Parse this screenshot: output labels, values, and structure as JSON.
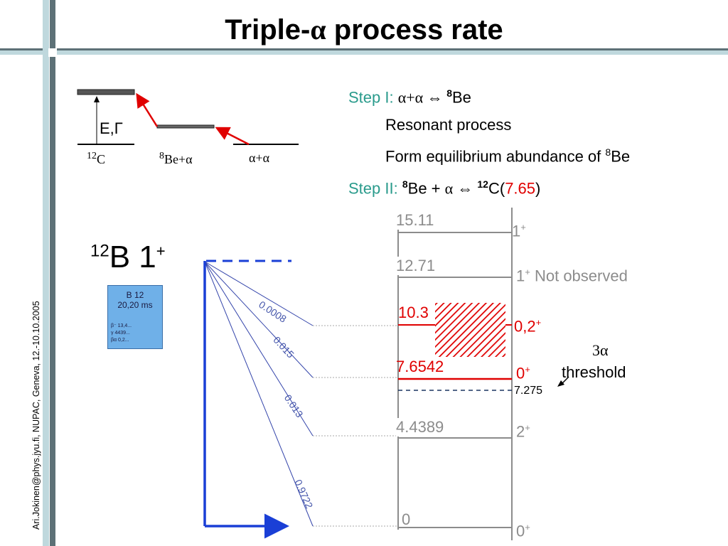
{
  "title_prefix": "Triple-",
  "title_alpha": "α",
  "title_suffix": " process rate",
  "footer_text": "Ari.Jokinen@phys.jyu.fi, NUPAC, Geneva, 12.-10.10.2005",
  "inset": {
    "e_gamma": "E,Γ",
    "c12": "C",
    "c12_mass": "12",
    "be8_mass": "8",
    "be8_alpha": "Be+α",
    "alpha_alpha": "α+α"
  },
  "steps": {
    "step1_label": "Step I:",
    "step1_text": "α+α  ⇔ ",
    "step1_mass": "8",
    "step1_be": "Be",
    "resonant": "Resonant process",
    "form_eq": "Form equilibrium abundance of ",
    "form_mass": "8",
    "form_be": "Be",
    "step2_label": "Step II:",
    "step2_mass": "8",
    "step2_be": "Be + ",
    "step2_alpha": "α",
    "step2_arrow": " ⇔ ",
    "step2_c_mass": "12",
    "step2_c": "C(",
    "step2_energy": "7.65",
    "step2_close": ")"
  },
  "b12": {
    "mass": "12",
    "symbol": "B 1",
    "sup": "+"
  },
  "thumb": {
    "title": "B 12",
    "subtitle": "20,20 ms",
    "lines": "β⁻ 13,4...\nγ 4439...\nβα 0,2..."
  },
  "branches": [
    "0.0008",
    "0.015",
    "0.013",
    "0.9722"
  ],
  "levels": [
    {
      "energy": "15.11",
      "spin": "1",
      "sup": "+"
    },
    {
      "energy": "12.71",
      "spin": "1",
      "sup": "+",
      "note": "Not observed"
    },
    {
      "energy": "10.3",
      "spin": "0,2",
      "sup": "+"
    },
    {
      "energy": "7.6542",
      "spin": "0",
      "sup": "+"
    },
    {
      "energy": "4.4389",
      "spin": "2",
      "sup": "+"
    },
    {
      "energy": "0",
      "spin": "0",
      "sup": "+"
    }
  ],
  "threshold": {
    "value": "7.275",
    "label_alpha": "3α",
    "label_text": "threshold"
  },
  "colors": {
    "title_bar": "#5d7177",
    "accent_band": "#bfd8dd",
    "teal_text": "#2a9b8c",
    "red": "#e00000",
    "blue": "#1a3fd6",
    "gray_level": "#8c8c8c"
  }
}
